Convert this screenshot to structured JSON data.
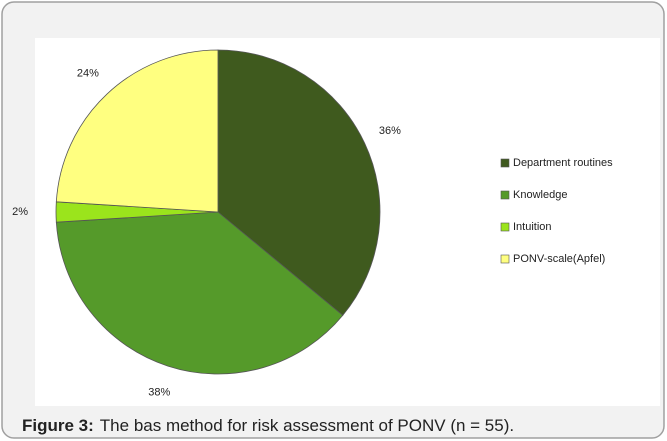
{
  "chart_data": {
    "type": "pie",
    "categories": [
      "Department routines",
      "Knowledge",
      "Intuition",
      "PONV-scale(Apfel)"
    ],
    "values": [
      36,
      38,
      2,
      24
    ],
    "value_labels": [
      "36%",
      "38%",
      "2%",
      "24%"
    ],
    "colors": [
      "#3f5a1e",
      "#559a2a",
      "#9be41c",
      "#ffff80"
    ],
    "legend": "right"
  },
  "caption": {
    "label": "Figure 3:",
    "text": "The bas method for risk assessment of PONV (n = 55)."
  }
}
